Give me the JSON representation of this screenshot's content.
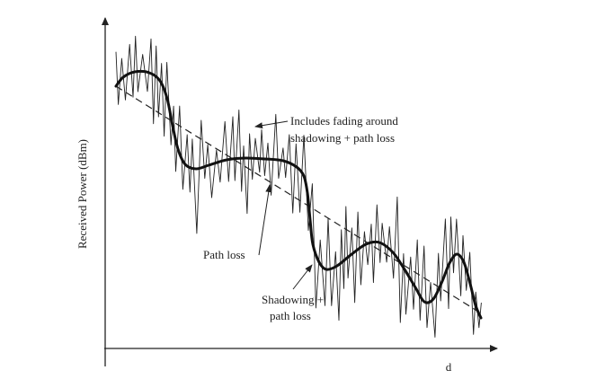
{
  "diagram": {
    "y_axis_label": "Received Power (dBm)",
    "x_axis_label": "d",
    "annotations": {
      "fading": [
        "Includes fading around",
        "shadowing + path loss"
      ],
      "path_loss": "Path loss",
      "shadowing": [
        "Shadowing +",
        "path loss"
      ]
    },
    "colors": {
      "ink": "#222222",
      "background": "#ffffff"
    },
    "line_styles": {
      "path_loss": "dashed",
      "shadowing": "thick solid",
      "fading": "thin oscillating"
    }
  }
}
